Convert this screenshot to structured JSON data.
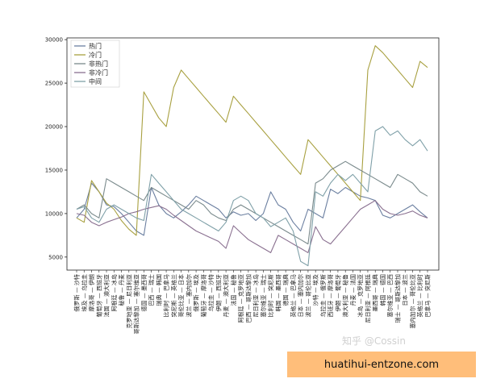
{
  "chart_data": {
    "type": "line",
    "ylim": [
      3500,
      30200
    ],
    "y_ticks": [
      5000,
      10000,
      15000,
      20000,
      25000,
      30000
    ],
    "grid": false,
    "legend_position": "top-left",
    "categories": [
      "俄罗斯 — 沙特",
      "埃及 — 乌拉圭",
      "摩洛哥 — 伊朗",
      "葡萄牙 — 西班牙",
      "法国 — 澳大利亚",
      "阿根廷 — 冰岛",
      "秘鲁 — 丹麦",
      "克罗地亚 — 尼日利亚",
      "哥斯达黎加 — 塞尔维亚",
      "德国 — 墨西哥",
      "巴西 — 瑞士",
      "瑞典 — 韩国",
      "比利时 — 巴拿马",
      "突尼斯 — 英格兰",
      "哥伦比亚 — 日本",
      "波兰 — 塞内加尔",
      "俄罗斯 — 埃及",
      "葡萄牙 — 摩洛哥",
      "乌拉圭 — 沙特",
      "伊朗 — 西班牙",
      "丹麦 — 澳大利亚",
      "法国 — 秘鲁",
      "阿根廷 — 克罗地亚",
      "巴西 — 哥斯达黎加",
      "尼日利亚 — 冰岛",
      "塞尔维亚 — 瑞士",
      "比利时 — 突尼斯",
      "韩国 — 墨西哥",
      "德国 — 瑞典",
      "英格兰 — 巴拿马",
      "日本 — 塞内加尔",
      "波兰 — 哥伦比亚",
      "沙特 — 埃及",
      "乌拉圭 — 俄罗斯",
      "西班牙 — 摩洛哥",
      "伊朗 — 葡萄牙",
      "澳大利亚 — 秘鲁",
      "丹麦 — 法国",
      "冰岛 — 克罗地亚",
      "尼日利亚 — 阿根廷",
      "墨西哥 — 瑞典",
      "韩国 — 德国",
      "塞尔维亚 — 巴西",
      "瑞士 — 哥斯达黎加",
      "日本 — 波兰",
      "塞内加尔 — 哥伦比亚",
      "英格兰 — 比利时",
      "巴拿马 — 突尼斯"
    ],
    "series": [
      {
        "name": "热门",
        "color": "#6b7fa0",
        "values": [
          9500,
          10500,
          13500,
          12500,
          11000,
          10800,
          10000,
          9000,
          8000,
          7500,
          13000,
          11000,
          10000,
          9500,
          10200,
          11000,
          12000,
          11500,
          11000,
          10500,
          9500,
          10200,
          9800,
          10000,
          9200,
          10000,
          12500,
          11000,
          10500,
          9000,
          8000,
          10500,
          10000,
          9500,
          12800,
          12300,
          13000,
          12500,
          12000,
          11800,
          11500,
          9800,
          9500,
          10000,
          10500,
          11000,
          10200,
          9500
        ]
      },
      {
        "name": "冷门",
        "color": "#a8a040",
        "values": [
          9500,
          9000,
          13800,
          12500,
          11200,
          10500,
          9200,
          8200,
          7500,
          24000,
          22500,
          21000,
          20000,
          24500,
          26500,
          25500,
          24500,
          23500,
          22500,
          21500,
          20500,
          23500,
          22500,
          21500,
          20500,
          19500,
          18500,
          17500,
          16500,
          15500,
          14500,
          18500,
          17500,
          16500,
          15500,
          14500,
          13500,
          12500,
          11500,
          26500,
          29300,
          28500,
          27500,
          26500,
          25500,
          24500,
          27500,
          26800
        ]
      },
      {
        "name": "非热门",
        "color": "#7a8a8c",
        "values": [
          10500,
          11000,
          10000,
          9500,
          14000,
          13500,
          13000,
          12500,
          12000,
          11500,
          13000,
          12500,
          12000,
          11500,
          11000,
          10500,
          11500,
          11000,
          10000,
          9500,
          9200,
          10500,
          11000,
          10500,
          10000,
          9500,
          9000,
          8500,
          8000,
          7500,
          7000,
          6500,
          13500,
          14000,
          15000,
          15500,
          16000,
          15500,
          15000,
          14500,
          14000,
          13500,
          13000,
          14500,
          14000,
          13500,
          12500,
          12000
        ]
      },
      {
        "name": "非冷门",
        "color": "#8a7090",
        "values": [
          10000,
          9800,
          9000,
          8600,
          9000,
          9300,
          9600,
          10000,
          10200,
          10500,
          10700,
          10900,
          10500,
          9800,
          9200,
          8600,
          8000,
          7600,
          7200,
          6800,
          6000,
          8600,
          7800,
          7000,
          6500,
          6000,
          5500,
          7500,
          7000,
          6500,
          6000,
          5500,
          8500,
          7000,
          6500,
          7500,
          8500,
          9500,
          10500,
          11000,
          11500,
          10500,
          10000,
          9800,
          10000,
          10300,
          9800,
          9500
        ]
      },
      {
        "name": "中间",
        "color": "#7fa0a8",
        "values": [
          10500,
          10800,
          9500,
          9000,
          10500,
          11000,
          10500,
          10000,
          9500,
          9200,
          14500,
          13500,
          12500,
          11500,
          10500,
          10000,
          9500,
          9000,
          8500,
          8000,
          9000,
          11500,
          12000,
          11500,
          10000,
          9500,
          8500,
          9000,
          9500,
          8000,
          4500,
          4000,
          12500,
          12000,
          13500,
          14500,
          13800,
          14500,
          13500,
          12500,
          19500,
          20000,
          19000,
          19500,
          18500,
          17800,
          18500,
          17200
        ]
      }
    ]
  },
  "watermark": "知乎 @Cossin",
  "banner": "huatihui-entzone.com"
}
